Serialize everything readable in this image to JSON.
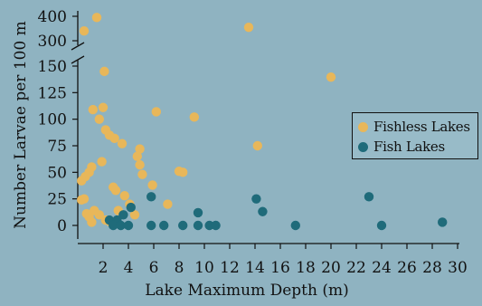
{
  "chart_data": {
    "type": "scatter",
    "xlabel": "Lake Maximum Depth (m)",
    "ylabel": "Number Larvae per 100 m",
    "xlim": [
      0,
      30
    ],
    "x_ticks": [
      "2",
      "4",
      "6",
      "8",
      "10",
      "12",
      "14",
      "16",
      "18",
      "20",
      "22",
      "24",
      "26",
      "28",
      "30"
    ],
    "y_ticks_lower": [
      "0",
      "25",
      "50",
      "75",
      "100",
      "125",
      "150"
    ],
    "y_ticks_upper": [
      "300",
      "400"
    ],
    "axis_break": "150-300",
    "legend": {
      "position": "right"
    },
    "series": [
      {
        "name": "Fishless Lakes",
        "color": "#e8b75a",
        "points": [
          [
            1.5,
            395
          ],
          [
            0.5,
            340
          ],
          [
            13.5,
            355
          ],
          [
            2.1,
            145
          ],
          [
            20,
            151
          ],
          [
            6.2,
            107
          ],
          [
            9.2,
            102
          ],
          [
            1.2,
            109
          ],
          [
            2.0,
            111
          ],
          [
            1.7,
            100
          ],
          [
            2.2,
            90
          ],
          [
            2.5,
            85
          ],
          [
            2.9,
            82
          ],
          [
            3.5,
            77
          ],
          [
            14.2,
            75
          ],
          [
            4.9,
            72
          ],
          [
            4.7,
            65
          ],
          [
            4.9,
            57
          ],
          [
            1.1,
            55
          ],
          [
            0.9,
            50
          ],
          [
            0.6,
            46
          ],
          [
            0.3,
            42
          ],
          [
            1.9,
            60
          ],
          [
            8.0,
            51
          ],
          [
            8.3,
            50
          ],
          [
            5.1,
            48
          ],
          [
            5.9,
            38
          ],
          [
            2.8,
            36
          ],
          [
            3.0,
            33
          ],
          [
            3.7,
            28
          ],
          [
            0.5,
            25
          ],
          [
            0.3,
            24
          ],
          [
            4.1,
            20
          ],
          [
            7.1,
            20
          ],
          [
            1.3,
            14
          ],
          [
            1.7,
            10
          ],
          [
            0.7,
            11
          ],
          [
            3.2,
            14
          ],
          [
            4.5,
            10
          ],
          [
            1.1,
            3
          ],
          [
            2.2,
            5
          ],
          [
            2.6,
            3
          ],
          [
            0.9,
            8
          ]
        ]
      },
      {
        "name": "Fish Lakes",
        "color": "#1f6b7a",
        "points": [
          [
            5.8,
            27
          ],
          [
            14.1,
            25
          ],
          [
            23,
            27
          ],
          [
            4.2,
            17
          ],
          [
            9.5,
            12
          ],
          [
            14.6,
            13
          ],
          [
            3.6,
            10
          ],
          [
            2.5,
            5
          ],
          [
            3.1,
            5
          ],
          [
            2.8,
            0
          ],
          [
            3.4,
            0
          ],
          [
            4.0,
            0
          ],
          [
            5.8,
            0
          ],
          [
            6.8,
            0
          ],
          [
            8.3,
            0
          ],
          [
            9.5,
            0
          ],
          [
            10.4,
            0
          ],
          [
            10.9,
            0
          ],
          [
            17.2,
            0
          ],
          [
            24.0,
            0
          ],
          [
            28.8,
            3
          ]
        ]
      }
    ]
  }
}
